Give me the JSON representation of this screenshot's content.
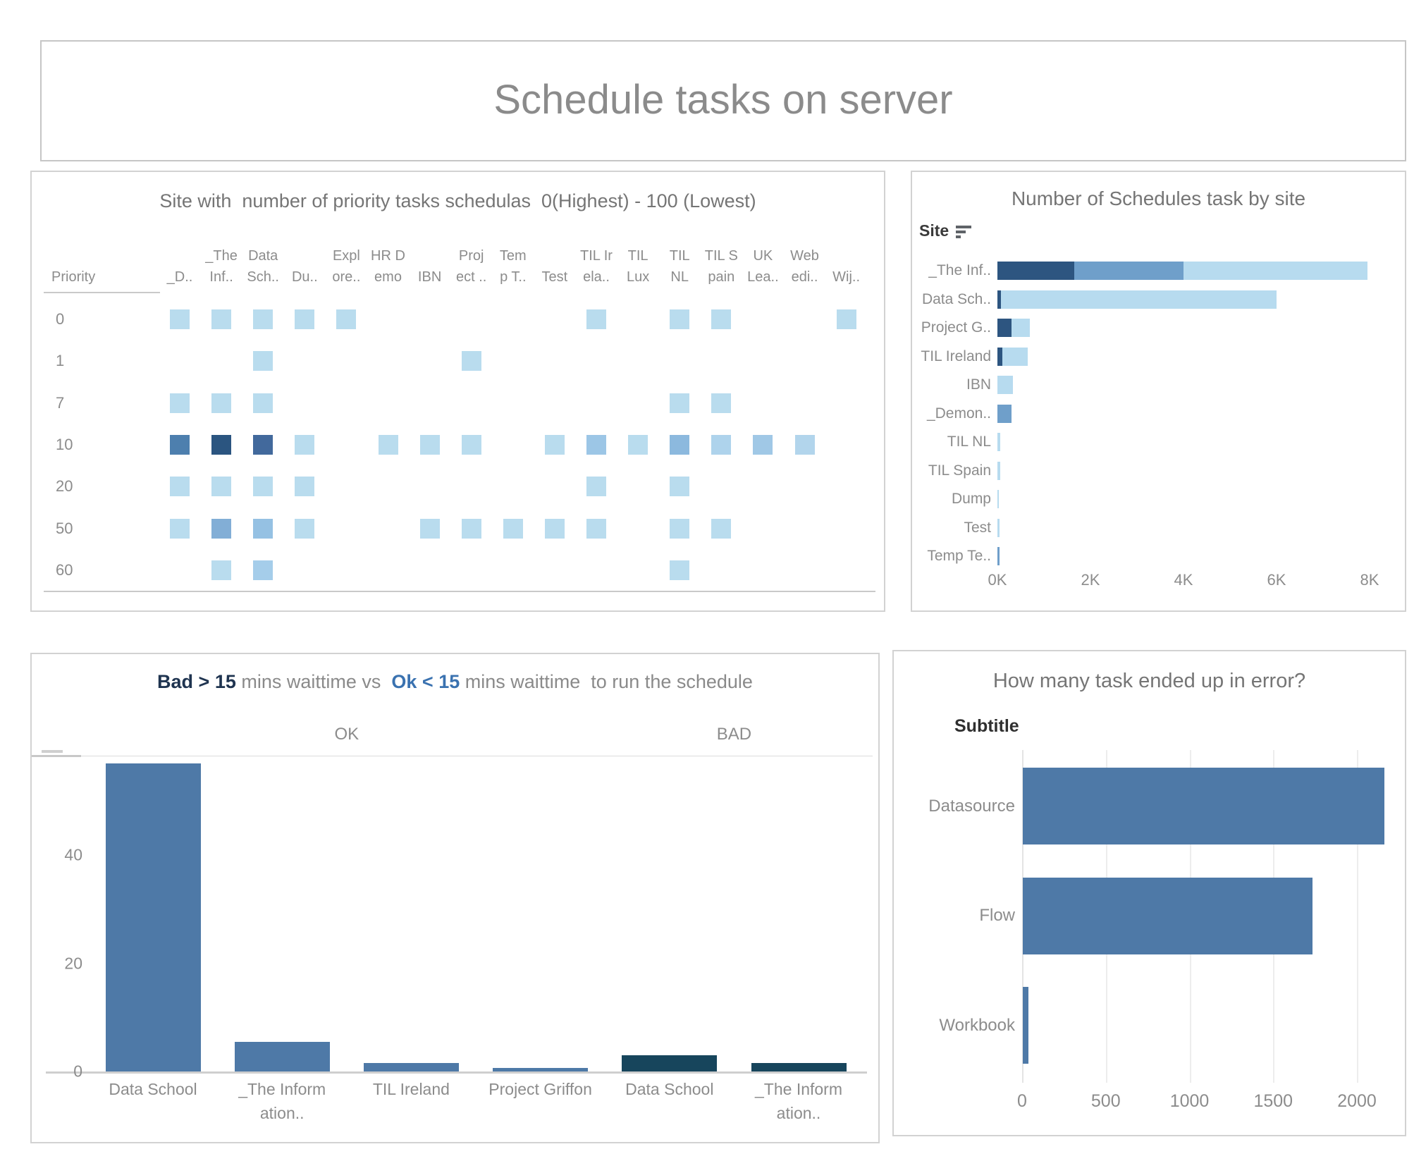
{
  "page": {
    "title": "Schedule tasks on server"
  },
  "colors": {
    "ok_blue": "#4e79a7",
    "bad_navy": "#17455c",
    "stack_dark": "#2d5580",
    "stack_medium": "#6f9fca",
    "stack_light": "#b7dbef",
    "cell_light": "#b9dcee",
    "label_gray": "#8c8c8c",
    "title_gray": "#757575"
  },
  "chart_data": [
    {
      "id": "priority-heatmap",
      "type": "heatmap",
      "title": "Site with  number of priority tasks schedulas  0(Highest) - 100 (Lowest)",
      "row_header": "Priority",
      "columns": [
        [
          "",
          "_D.."
        ],
        [
          "_The",
          "Inf.."
        ],
        [
          "Data",
          "Sch.."
        ],
        [
          "",
          "Du.."
        ],
        [
          "Expl",
          "ore.."
        ],
        [
          "HR D",
          "emo"
        ],
        [
          "",
          "IBN"
        ],
        [
          "Proj",
          "ect .."
        ],
        [
          "Tem",
          "p T.."
        ],
        [
          "",
          "Test"
        ],
        [
          "TIL Ir",
          "ela.."
        ],
        [
          "TIL",
          "Lux"
        ],
        [
          "TIL",
          "NL"
        ],
        [
          "TIL S",
          "pain"
        ],
        [
          "UK",
          "Lea.."
        ],
        [
          "Web",
          "edi.."
        ],
        [
          "",
          "Wij.."
        ]
      ],
      "rows": [
        "0",
        "1",
        "7",
        "10",
        "20",
        "50",
        "60"
      ],
      "legend_note": "cell color encodes number of scheduled tasks (light=few, dark=many)",
      "cells": [
        [
          0,
          0,
          "#b9dcee"
        ],
        [
          0,
          1,
          "#b9dcee"
        ],
        [
          0,
          2,
          "#b9dcee"
        ],
        [
          0,
          3,
          "#b9dcee"
        ],
        [
          0,
          4,
          "#b9dcee"
        ],
        [
          0,
          10,
          "#b9dcee"
        ],
        [
          0,
          12,
          "#b9dcee"
        ],
        [
          0,
          13,
          "#b9dcee"
        ],
        [
          0,
          16,
          "#b9dcee"
        ],
        [
          1,
          2,
          "#b9dcee"
        ],
        [
          1,
          7,
          "#b9dcee"
        ],
        [
          2,
          0,
          "#b9dcee"
        ],
        [
          2,
          1,
          "#b9dcee"
        ],
        [
          2,
          2,
          "#b9dcee"
        ],
        [
          2,
          12,
          "#b9dcee"
        ],
        [
          2,
          13,
          "#b9dcee"
        ],
        [
          3,
          0,
          "#4d7fae"
        ],
        [
          3,
          1,
          "#2b5580"
        ],
        [
          3,
          2,
          "#42699c"
        ],
        [
          3,
          3,
          "#b9dcee"
        ],
        [
          3,
          5,
          "#b9dcee"
        ],
        [
          3,
          6,
          "#b9dcee"
        ],
        [
          3,
          7,
          "#b9dcee"
        ],
        [
          3,
          9,
          "#b9dcee"
        ],
        [
          3,
          10,
          "#9cc6e6"
        ],
        [
          3,
          11,
          "#b9dcee"
        ],
        [
          3,
          12,
          "#8cb9de"
        ],
        [
          3,
          13,
          "#aed3ec"
        ],
        [
          3,
          14,
          "#a0c8e6"
        ],
        [
          3,
          15,
          "#b2d5ec"
        ],
        [
          4,
          0,
          "#b9dcee"
        ],
        [
          4,
          1,
          "#b9dcee"
        ],
        [
          4,
          2,
          "#b9dcee"
        ],
        [
          4,
          3,
          "#b9dcee"
        ],
        [
          4,
          10,
          "#b9dcee"
        ],
        [
          4,
          12,
          "#b9dcee"
        ],
        [
          5,
          0,
          "#b9dcee"
        ],
        [
          5,
          1,
          "#82aed6"
        ],
        [
          5,
          2,
          "#95c1e3"
        ],
        [
          5,
          3,
          "#b9dcee"
        ],
        [
          5,
          6,
          "#b9dcee"
        ],
        [
          5,
          7,
          "#b9dcee"
        ],
        [
          5,
          8,
          "#b9dcee"
        ],
        [
          5,
          9,
          "#b9dcee"
        ],
        [
          5,
          10,
          "#b9dcee"
        ],
        [
          5,
          12,
          "#b9dcee"
        ],
        [
          5,
          13,
          "#b9dcee"
        ],
        [
          6,
          1,
          "#b9dcee"
        ],
        [
          6,
          2,
          "#a5cdea"
        ],
        [
          6,
          12,
          "#b9dcee"
        ]
      ]
    },
    {
      "id": "schedules-by-site",
      "type": "bar",
      "title": "Number of Schedules task by site",
      "axis_header": "Site",
      "orientation": "horizontal",
      "x_ticks": [
        "0K",
        "2K",
        "4K",
        "6K",
        "8K"
      ],
      "x_tick_values": [
        0,
        2000,
        4000,
        6000,
        8000
      ],
      "xlim": [
        0,
        8600
      ],
      "bars": [
        {
          "label": "_The Inf..",
          "segments": [
            [
              "dark",
              1650
            ],
            [
              "medium",
              2350
            ],
            [
              "light",
              3950
            ]
          ]
        },
        {
          "label": "Data Sch..",
          "segments": [
            [
              "dark",
              80
            ],
            [
              "light",
              5920
            ]
          ]
        },
        {
          "label": "Project G..",
          "segments": [
            [
              "dark",
              300
            ],
            [
              "light",
              400
            ]
          ]
        },
        {
          "label": "TIL Ireland",
          "segments": [
            [
              "dark",
              100
            ],
            [
              "light",
              550
            ]
          ]
        },
        {
          "label": "IBN",
          "segments": [
            [
              "light",
              330
            ]
          ]
        },
        {
          "label": "_Demon..",
          "segments": [
            [
              "medium",
              300
            ]
          ]
        },
        {
          "label": "TIL NL",
          "segments": [
            [
              "light",
              60
            ]
          ]
        },
        {
          "label": "TIL Spain",
          "segments": [
            [
              "light",
              60
            ]
          ]
        },
        {
          "label": "Dump",
          "segments": [
            [
              "light",
              30
            ]
          ]
        },
        {
          "label": "Test",
          "segments": [
            [
              "light",
              45
            ]
          ]
        },
        {
          "label": "Temp Te..",
          "segments": [
            [
              "medium",
              45
            ]
          ]
        }
      ]
    },
    {
      "id": "waittime",
      "type": "bar",
      "orientation": "vertical",
      "title_parts": [
        {
          "text": "Bad > 15",
          "style": "bad"
        },
        {
          "text": " mins waittime vs  ",
          "style": "plain"
        },
        {
          "text": "Ok < 15",
          "style": "ok"
        },
        {
          "text": " mins waittime  to run the schedule",
          "style": "plain"
        }
      ],
      "group_headers": [
        "OK",
        "BAD"
      ],
      "y_ticks": [
        40,
        20,
        0
      ],
      "ylim": [
        0,
        60
      ],
      "bars": [
        {
          "label_lines": [
            "Data School"
          ],
          "group": "OK",
          "value": 57
        },
        {
          "label_lines": [
            "_The Inform",
            "ation.."
          ],
          "group": "OK",
          "value": 5.5
        },
        {
          "label_lines": [
            "TIL Ireland"
          ],
          "group": "OK",
          "value": 1.6
        },
        {
          "label_lines": [
            "Project Griffon"
          ],
          "group": "OK",
          "value": 0.7
        },
        {
          "label_lines": [
            "Data School"
          ],
          "group": "BAD",
          "value": 3
        },
        {
          "label_lines": [
            "_The Inform",
            "ation.."
          ],
          "group": "BAD",
          "value": 1.5
        }
      ]
    },
    {
      "id": "errors",
      "type": "bar",
      "orientation": "horizontal",
      "title": "How many task ended up in error?",
      "subtitle_label": "Subtitle",
      "x_ticks": [
        0,
        500,
        1000,
        1500,
        2000
      ],
      "xlim": [
        0,
        2300
      ],
      "bars": [
        {
          "label": "Datasource",
          "value": 2160
        },
        {
          "label": "Flow",
          "value": 1730
        },
        {
          "label": "Workbook",
          "value": 35
        }
      ]
    }
  ]
}
